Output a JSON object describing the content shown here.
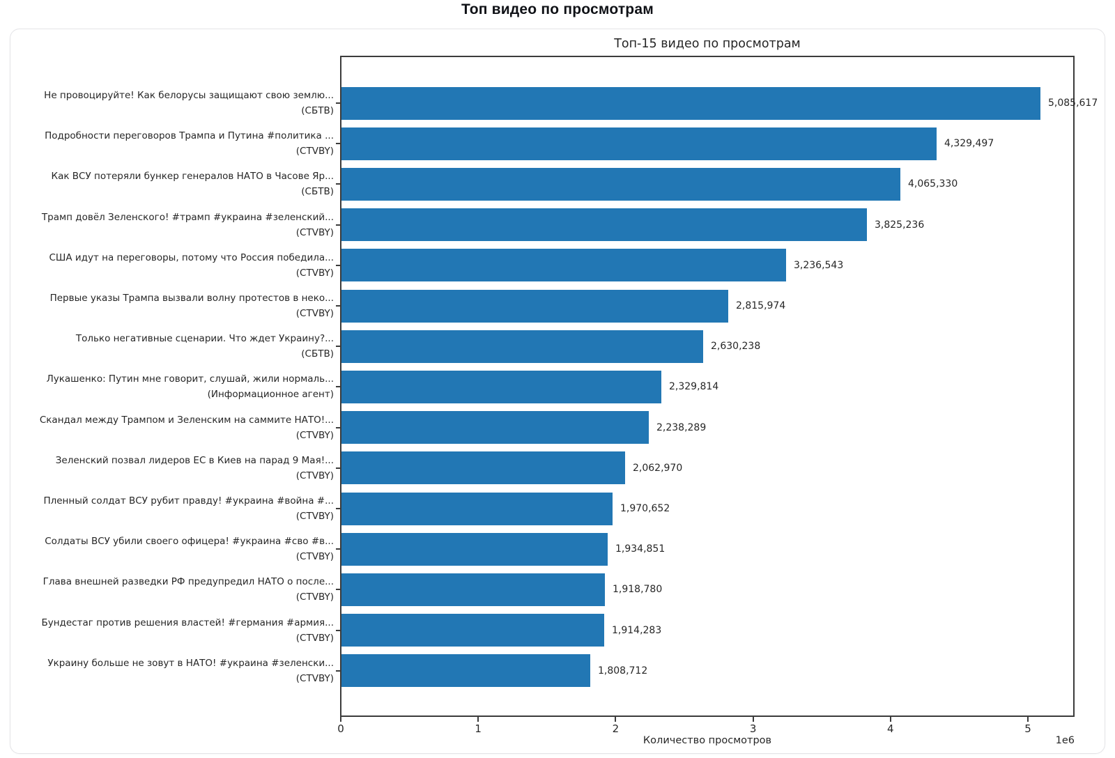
{
  "page": {
    "title": "Топ видео по просмотрам"
  },
  "chart_data": {
    "type": "bar",
    "orientation": "horizontal",
    "title": "Топ-15 видео по просмотрам",
    "xlabel": "Количество просмотров",
    "x_scale_offset_label": "1e6",
    "xlim": [
      0,
      5345000
    ],
    "x_ticks": [
      0,
      1000000,
      2000000,
      3000000,
      4000000,
      5000000
    ],
    "x_tick_labels": [
      "0",
      "1",
      "2",
      "3",
      "4",
      "5"
    ],
    "grid": false,
    "legend": false,
    "bar_color": "#2277b4",
    "categories": [
      {
        "title": "Не провоцируйте! Как белорусы защищают свою землю...",
        "channel": "(СБТВ)"
      },
      {
        "title": "Подробности переговоров Трампа и Путина #политика ...",
        "channel": "(CTVBY)"
      },
      {
        "title": "Как ВСУ потеряли бункер генералов НАТО в Часове Яр...",
        "channel": "(СБТВ)"
      },
      {
        "title": "Трамп довёл Зеленского! #трамп #украина #зеленский...",
        "channel": "(CTVBY)"
      },
      {
        "title": "США идут на переговоры, потому что Россия победила...",
        "channel": "(CTVBY)"
      },
      {
        "title": "Первые указы Трампа вызвали волну протестов в неко...",
        "channel": "(CTVBY)"
      },
      {
        "title": "Только негативные сценарии. Что ждет Украину?...",
        "channel": "(СБТВ)"
      },
      {
        "title": "Лукашенко: Путин мне говорит, слушай, жили нормаль...",
        "channel": "(Информационное агент)"
      },
      {
        "title": "Скандал между Трампом и Зеленским на саммите НАТО!...",
        "channel": "(CTVBY)"
      },
      {
        "title": "Зеленский позвал лидеров ЕС в Киев на парад 9 Мая!...",
        "channel": "(CTVBY)"
      },
      {
        "title": "Пленный солдат ВСУ рубит правду! #украина #война #...",
        "channel": "(CTVBY)"
      },
      {
        "title": "Солдаты ВСУ убили своего офицера! #украина #сво #в...",
        "channel": "(CTVBY)"
      },
      {
        "title": "Глава внешней разведки РФ предупредил НАТО о после...",
        "channel": "(CTVBY)"
      },
      {
        "title": "Бундестаг против решения властей! #германия #армия...",
        "channel": "(CTVBY)"
      },
      {
        "title": "Украину больше не зовут в НАТО! #украина #зеленски...",
        "channel": "(CTVBY)"
      }
    ],
    "values": [
      5085617,
      4329497,
      4065330,
      3825236,
      3236543,
      2815974,
      2630238,
      2329814,
      2238289,
      2062970,
      1970652,
      1934851,
      1918780,
      1914283,
      1808712
    ]
  }
}
